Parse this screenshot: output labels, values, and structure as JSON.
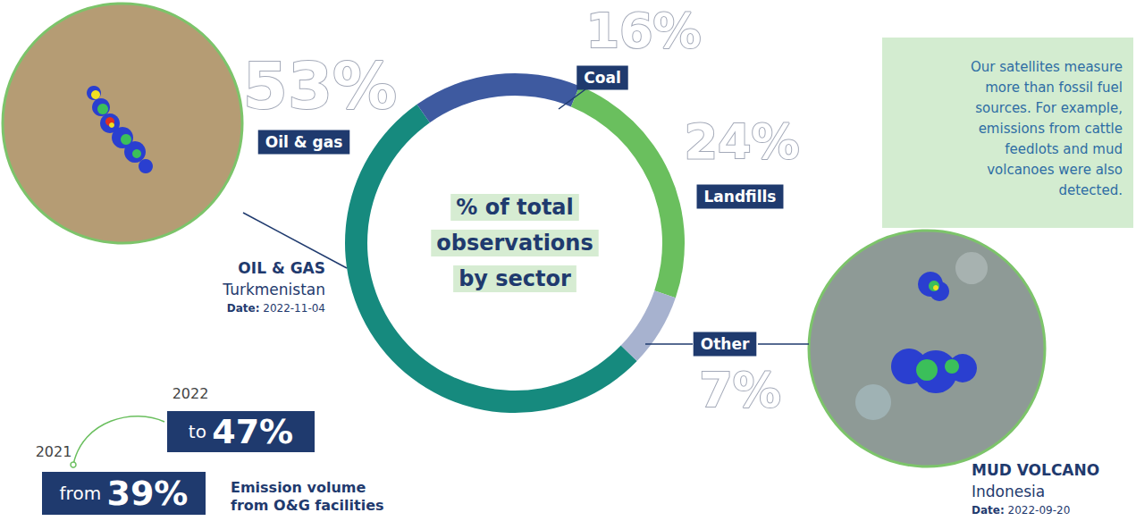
{
  "chart_data": {
    "type": "pie",
    "title": "% of total observations by sector",
    "categories": [
      "Oil & gas",
      "Coal",
      "Landfills",
      "Other"
    ],
    "values": [
      53,
      16,
      24,
      7
    ],
    "value_labels": [
      "53%",
      "16%",
      "24%",
      "7%"
    ],
    "colors": [
      "#168a7e",
      "#3e5aa0",
      "#6abf5e",
      "#a7b2cf"
    ],
    "data_labels": true,
    "note": "Our satellites measure more than fossil fuel sources. For example, emissions from cattle feedlots and mud volcanoes were also detected.",
    "examples": [
      {
        "sector": "OIL & GAS",
        "location": "Turkmenistan",
        "date_label": "Date:",
        "date": "2022-11-04"
      },
      {
        "sector": "MUD VOLCANO",
        "location": "Indonesia",
        "date_label": "Date:",
        "date": "2022-09-20"
      }
    ],
    "comparison": {
      "label": "Emission volume from O&G facilities",
      "from": {
        "year": "2021",
        "word": "from",
        "value": 39,
        "value_label": "39%"
      },
      "to": {
        "year": "2022",
        "word": "to",
        "value": 47,
        "value_label": "47%"
      }
    }
  }
}
